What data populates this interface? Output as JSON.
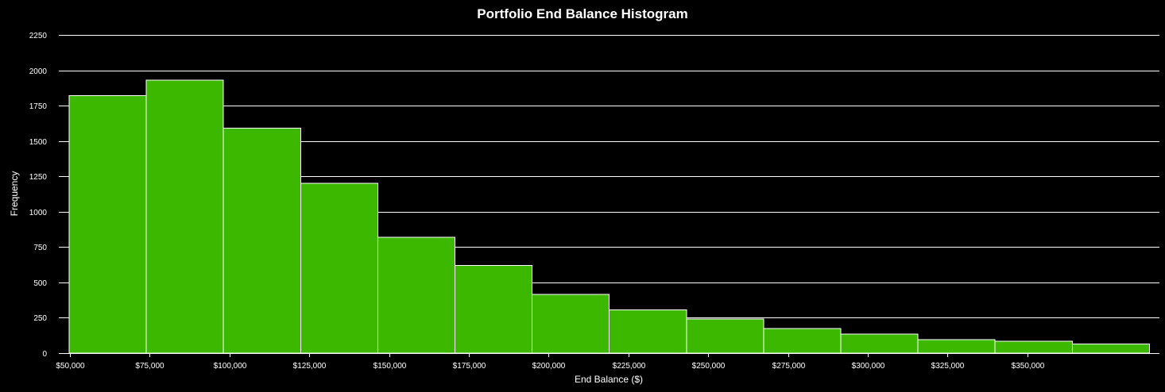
{
  "chart_data": {
    "type": "bar",
    "title": "Portfolio End Balance Histogram",
    "xlabel": "End Balance ($)",
    "ylabel": "Frequency",
    "bar_color": "#3cb800",
    "background": "#000000",
    "grid": true,
    "ylim": [
      0,
      2250
    ],
    "yticks": [
      "0",
      "250",
      "500",
      "750",
      "1000",
      "1250",
      "1500",
      "1750",
      "2000",
      "2250"
    ],
    "xticks": [
      "$50,000",
      "$75,000",
      "$100,000",
      "$125,000",
      "$150,000",
      "$175,000",
      "$200,000",
      "$225,000",
      "$250,000",
      "$275,000",
      "$300,000",
      "$325,000",
      "$350,000"
    ],
    "values": [
      1820,
      1930,
      1590,
      1200,
      820,
      620,
      415,
      305,
      240,
      175,
      135,
      95,
      85,
      65
    ]
  }
}
